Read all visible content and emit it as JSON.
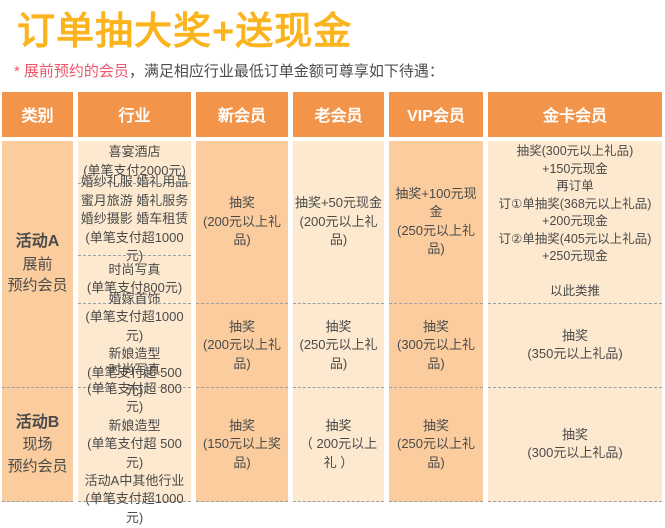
{
  "page": {
    "title": "订单抽大奖+送现金",
    "note": {
      "star": "*",
      "highlight": "展前预约的会员",
      "rest": "，满足相应行业最低订单金额可尊享如下待遇："
    }
  },
  "colors": {
    "title": "#FBB41E",
    "note_highlight": "#F2556A",
    "header_bg": "#F2954B",
    "header_text": "#FFFFFF",
    "cell_peach": "#FBCD9E",
    "cell_cream": "#FCE9CF",
    "body_text": "#4A4A4A",
    "dashed_line": "#9AA0A8"
  },
  "table": {
    "headers": [
      "类别",
      "行业",
      "新会员",
      "老会员",
      "VIP会员",
      "金卡会员"
    ],
    "categories": [
      {
        "name": "活动A",
        "lines": [
          "展前",
          "预约会员"
        ]
      },
      {
        "name": "活动B",
        "lines": [
          "现场",
          "预约会员"
        ]
      }
    ],
    "industry": {
      "a1": [
        "喜宴酒店",
        "(单笔支付2000元)"
      ],
      "a2": [
        "婚纱礼服  婚礼用品",
        "蜜月旅游  婚礼服务",
        "婚纱摄影  婚车租赁",
        "(单笔支付超1000元)"
      ],
      "a3": [
        "时尚写真",
        "(单笔支付800元)"
      ],
      "a4": [
        "婚嫁首饰",
        "(单笔支付超1000元)",
        "新娘造型",
        "(单笔支付超 500元)"
      ],
      "b1": [
        "时尚写真",
        "(单笔支付超 800元)",
        "新娘造型",
        "(单笔支付超 500元)",
        "活动A中其他行业",
        "(单笔支付超1000元)"
      ]
    },
    "new_member": {
      "a1": [
        "抽奖",
        "(200元以上礼品)"
      ],
      "a2": [
        "抽奖",
        "(200元以上礼品)"
      ],
      "b": [
        "抽奖",
        "(150元以上奖品)"
      ]
    },
    "old_member": {
      "a1": [
        "抽奖+50元现金",
        "(200元以上礼品)"
      ],
      "a2": [
        "抽奖",
        "(250元以上礼品)"
      ],
      "b": [
        "抽奖",
        "（ 200元以上礼 ）"
      ]
    },
    "vip_member": {
      "a1": [
        "抽奖+100元现金",
        "(250元以上礼品)"
      ],
      "a2": [
        "抽奖",
        "(300元以上礼品)"
      ],
      "b": [
        "抽奖",
        "(250元以上礼品)"
      ]
    },
    "gold_member": {
      "a1": [
        "抽奖(300元以上礼品)",
        "+150元现金",
        "再订单",
        "订①单抽奖(368元以上礼品)",
        "+200元现金",
        "订②单抽奖(405元以上礼品)",
        "+250元现金",
        "",
        "以此类推"
      ],
      "a2": [
        "抽奖",
        "(350元以上礼品)"
      ],
      "b": [
        "抽奖",
        "(300元以上礼品)"
      ]
    }
  }
}
